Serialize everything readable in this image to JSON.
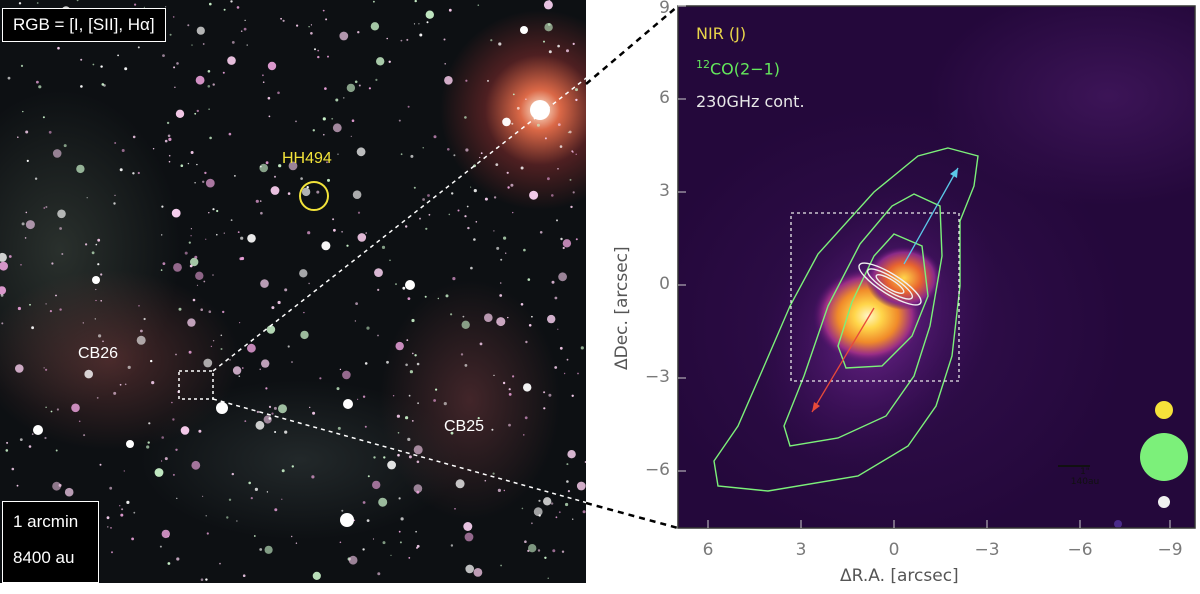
{
  "left_panel": {
    "rgb_label": "RGB = [I, [SII], Hα]",
    "scale_line1": "1 arcmin",
    "scale_line2": "8400 au",
    "labels": {
      "hh": "HH494",
      "cb26": "CB26",
      "cb25": "CB25"
    }
  },
  "right_panel": {
    "legend": {
      "nir": "NIR (J)",
      "co_sup": "12",
      "co_main": "CO(2−1)",
      "cont": "230GHz cont."
    },
    "xlabel": "ΔR.A. [arcsec]",
    "ylabel": "ΔDec. [arcsec]",
    "xticks": [
      "6",
      "3",
      "0",
      "−3",
      "−6",
      "−9"
    ],
    "yticks": [
      "9",
      "6",
      "3",
      "0",
      "−3",
      "−6"
    ],
    "scalebar": {
      "top": "1\"",
      "bottom": "140au"
    }
  },
  "colors": {
    "nir": "#f5e23a",
    "co": "#7cf07a",
    "cont": "#f0f0f0",
    "blue_lobe": "#5bc8e8",
    "red_lobe": "#e84a3a"
  }
}
